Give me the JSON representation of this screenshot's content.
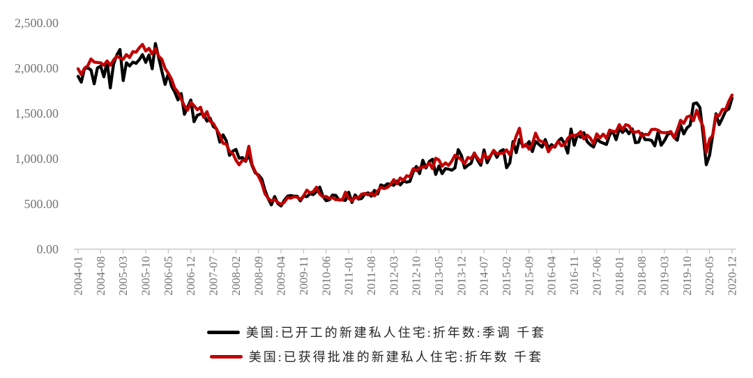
{
  "chart_data": {
    "type": "line",
    "frequency": "monthly",
    "x_start": "2004-01",
    "x_end": "2020-12",
    "months_per_tick": 7,
    "x_tick_labels": [
      "2004-01",
      "2004-08",
      "2005-03",
      "2005-10",
      "2006-05",
      "2006-12",
      "2007-07",
      "2008-02",
      "2008-09",
      "2009-04",
      "2009-11",
      "2010-06",
      "2011-01",
      "2011-08",
      "2012-03",
      "2012-10",
      "2013-05",
      "2013-12",
      "2014-07",
      "2015-02",
      "2015-09",
      "2016-04",
      "2016-11",
      "2017-06",
      "2018-01",
      "2018-08",
      "2019-03",
      "2019-10",
      "2020-05",
      "2020-12"
    ],
    "y_tick_labels": [
      "2,500.00",
      "2,000.00",
      "1,500.00",
      "1,000.00",
      "500.00",
      "0.00"
    ],
    "ylim": [
      0,
      2500
    ],
    "y_step": 500,
    "grid": false,
    "legend_position": "bottom",
    "axis_color": "#BFBFBF",
    "tick_label_color": "#757575",
    "series": [
      {
        "name": "美国:已开工的新建私人住宅:折年数:季调 千套",
        "color": "#000000",
        "values": [
          1911,
          1846,
          1998,
          2003,
          1981,
          1828,
          2002,
          2024,
          1905,
          2072,
          1782,
          2042,
          2144,
          2207,
          1864,
          2061,
          2025,
          2068,
          2054,
          2095,
          2151,
          2065,
          2147,
          1994,
          2273,
          2119,
          1969,
          1821,
          1942,
          1802,
          1737,
          1650,
          1720,
          1491,
          1570,
          1649,
          1409,
          1480,
          1495,
          1490,
          1415,
          1448,
          1354,
          1330,
          1183,
          1264,
          1197,
          1037,
          1084,
          1103,
          1005,
          1013,
          971,
          1046,
          923,
          844,
          820,
          777,
          652,
          560,
          490,
          582,
          505,
          478,
          540,
          585,
          594,
          586,
          585,
          534,
          588,
          581,
          614,
          604,
          636,
          687,
          583,
          536,
          546,
          599,
          594,
          543,
          545,
          539,
          630,
          517,
          600,
          554,
          561,
          608,
          623,
          585,
          650,
          610,
          711,
          694,
          723,
          718,
          706,
          754,
          711,
          754,
          741,
          749,
          854,
          915,
          835,
          983,
          898,
          969,
          994,
          826,
          919,
          835,
          891,
          885,
          873,
          899,
          1101,
          1034,
          897,
          928,
          950,
          1063,
          984,
          927,
          1098,
          955,
          1028,
          1092,
          1015,
          1081,
          1101,
          900,
          954,
          1190,
          1067,
          1213,
          1147,
          1141,
          1189,
          1079,
          1190,
          1160,
          1128,
          1213,
          1113,
          1155,
          1128,
          1195,
          1226,
          1164,
          1062,
          1328,
          1149,
          1268,
          1236,
          1288,
          1189,
          1154,
          1129,
          1217,
          1188,
          1172,
          1158,
          1265,
          1303,
          1210,
          1334,
          1290,
          1327,
          1276,
          1329,
          1177,
          1184,
          1279,
          1211,
          1211,
          1202,
          1142,
          1291,
          1149,
          1199,
          1267,
          1289,
          1235,
          1204,
          1375,
          1274,
          1340,
          1371,
          1608,
          1617,
          1567,
          1269,
          934,
          1038,
          1265,
          1497,
          1376,
          1448,
          1528,
          1551,
          1670
        ]
      },
      {
        "name": "美国:已获得批准的新建私人住宅:折年数 千套",
        "color": "#C00000",
        "values": [
          1994,
          1929,
          2000,
          2028,
          2102,
          2068,
          2063,
          2059,
          2033,
          2081,
          2033,
          2089,
          2133,
          2114,
          2099,
          2151,
          2118,
          2183,
          2177,
          2226,
          2263,
          2190,
          2220,
          2157,
          2217,
          2134,
          2099,
          1997,
          1945,
          1880,
          1780,
          1736,
          1660,
          1583,
          1537,
          1623,
          1586,
          1541,
          1569,
          1457,
          1520,
          1413,
          1389,
          1322,
          1261,
          1170,
          1162,
          1080,
          1061,
          984,
          932,
          982,
          978,
          1138,
          937,
          857,
          805,
          730,
          615,
          564,
          531,
          550,
          516,
          498,
          518,
          570,
          564,
          580,
          575,
          551,
          589,
          653,
          622,
          637,
          685,
          610,
          579,
          583,
          559,
          571,
          547,
          550,
          544,
          631,
          563,
          534,
          574,
          563,
          609,
          617,
          601,
          620,
          589,
          644,
          683,
          671,
          682,
          715,
          769,
          723,
          788,
          760,
          812,
          801,
          890,
          868,
          900,
          905,
          915,
          952,
          890,
          1005,
          985,
          918,
          954,
          926,
          974,
          1039,
          1017,
          986,
          945,
          1014,
          1000,
          1059,
          1005,
          963,
          1057,
          1003,
          1031,
          1092,
          1052,
          1060,
          1060,
          1098,
          1042,
          1140,
          1250,
          1337,
          1130,
          1161,
          1105,
          1161,
          1282,
          1204,
          1188,
          1177,
          1077,
          1130,
          1136,
          1193,
          1144,
          1152,
          1225,
          1260,
          1255,
          1266,
          1300,
          1219,
          1260,
          1228,
          1168,
          1275,
          1230,
          1272,
          1225,
          1316,
          1303,
          1300,
          1377,
          1323,
          1377,
          1364,
          1301,
          1292,
          1303,
          1249,
          1270,
          1265,
          1322,
          1326,
          1316,
          1291,
          1288,
          1290,
          1299,
          1232,
          1317,
          1425,
          1391,
          1461,
          1474,
          1420,
          1536,
          1438,
          1356,
          1066,
          1216,
          1258,
          1483,
          1476,
          1545,
          1544,
          1635,
          1704
        ]
      }
    ]
  }
}
